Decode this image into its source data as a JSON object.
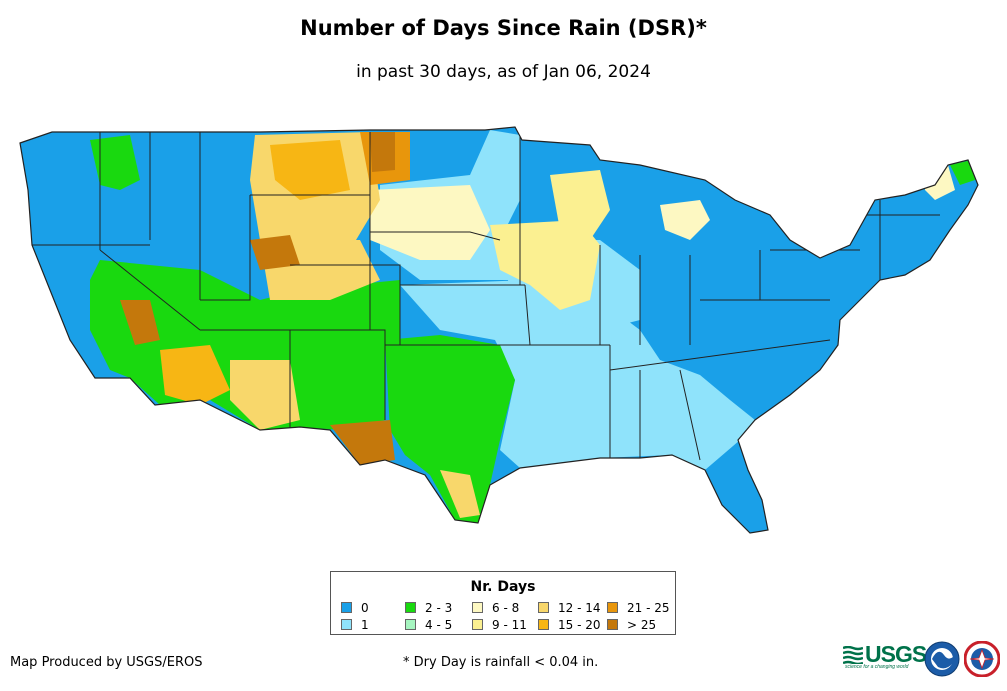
{
  "header": {
    "title": "Number of Days Since Rain (DSR)*",
    "subtitle": "in past 30 days, as of Jan 06, 2024"
  },
  "legend": {
    "title": "Nr. Days",
    "items": [
      {
        "label": "0",
        "color": "#1aa0e8"
      },
      {
        "label": "1",
        "color": "#8fe3fb"
      },
      {
        "label": "2 - 3",
        "color": "#19d90f"
      },
      {
        "label": "4 - 5",
        "color": "#a6f5c0"
      },
      {
        "label": "6 - 8",
        "color": "#fdf8c2"
      },
      {
        "label": "9 - 11",
        "color": "#fbf091"
      },
      {
        "label": "12 - 14",
        "color": "#f8d76b"
      },
      {
        "label": "15 - 20",
        "color": "#f7b614"
      },
      {
        "label": "21 - 25",
        "color": "#e8960c"
      },
      {
        "label": "> 25",
        "color": "#c4780c"
      }
    ]
  },
  "footer": {
    "credit": "Map Produced by USGS/EROS",
    "note": "* Dry Day is rainfall < 0.04 in.",
    "usgs_logo_text": "USGS",
    "usgs_tagline": "science for a changing world"
  },
  "logos": [
    "usgs-logo",
    "noaa-logo",
    "national-weather-service-logo"
  ]
}
